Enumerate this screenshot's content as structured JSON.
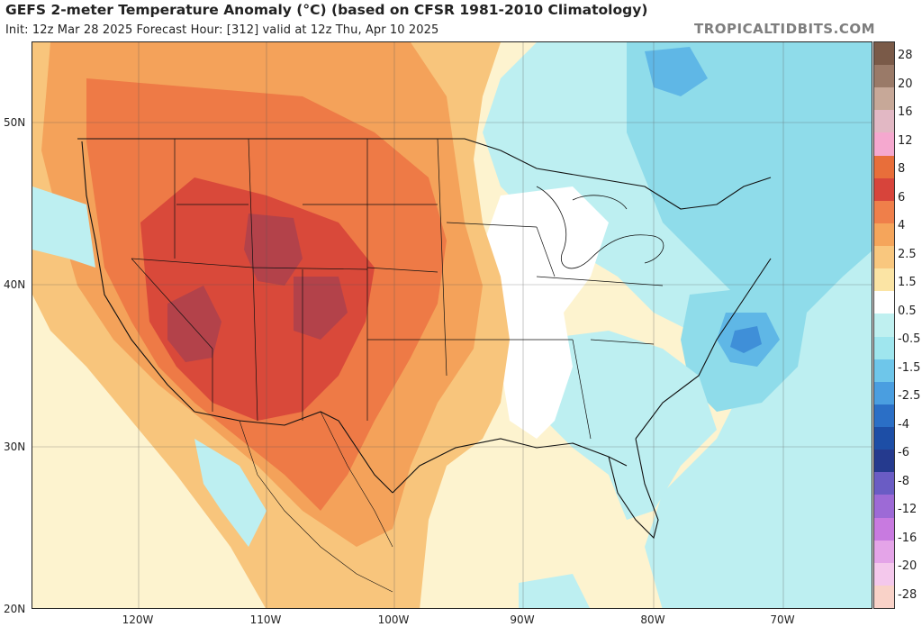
{
  "header": {
    "title": "GEFS 2-meter Temperature Anomaly (°C) (based on CFSR 1981-2010 Climatology)",
    "subtitle": "Init: 12z Mar 28 2025   Forecast Hour: [312]   valid at 12z Thu, Apr 10 2025",
    "brand": "TROPICALTIDBITS.COM"
  },
  "axes": {
    "latitudes": [
      "50N",
      "40N",
      "30N",
      "20N"
    ],
    "longitudes": [
      "120W",
      "110W",
      "100W",
      "90W",
      "80W",
      "70W"
    ]
  },
  "colorbar": {
    "labels": [
      "28",
      "20",
      "16",
      "12",
      "8",
      "6",
      "4",
      "2.5",
      "1.5",
      "0.5",
      "-0.5",
      "-1.5",
      "-2.5",
      "-4",
      "-6",
      "-8",
      "-12",
      "-16",
      "-20",
      "-28"
    ],
    "colors": [
      "#7a5a48",
      "#9a7a68",
      "#c7a898",
      "#e2b8c4",
      "#f5a8cf",
      "#e86e3a",
      "#d7443b",
      "#ef7f4a",
      "#f5a55b",
      "#f9c77e",
      "#fbe4a4",
      "#ffffff",
      "#bff0f0",
      "#9fe6ee",
      "#6ec6ea",
      "#4a9ee0",
      "#2b6fc6",
      "#1d4ea6",
      "#253a8e",
      "#6a5cc4",
      "#9d6ad6",
      "#c87ae0",
      "#e4a4e8",
      "#f4c8ec",
      "#f9d2c8"
    ]
  },
  "map": {
    "colors": {
      "hot_dark": "#b3424a",
      "hot": "#d9493a",
      "warm": "#ee7a46",
      "mild": "#f4a25a",
      "light_warm": "#f8c57c",
      "pale_warm": "#fbe3a3",
      "neutral": "#ffffff",
      "pale_cool": "#bdeff1",
      "cool": "#8fdcea",
      "cold": "#5fb7e6",
      "colder": "#3f8fd8"
    }
  }
}
